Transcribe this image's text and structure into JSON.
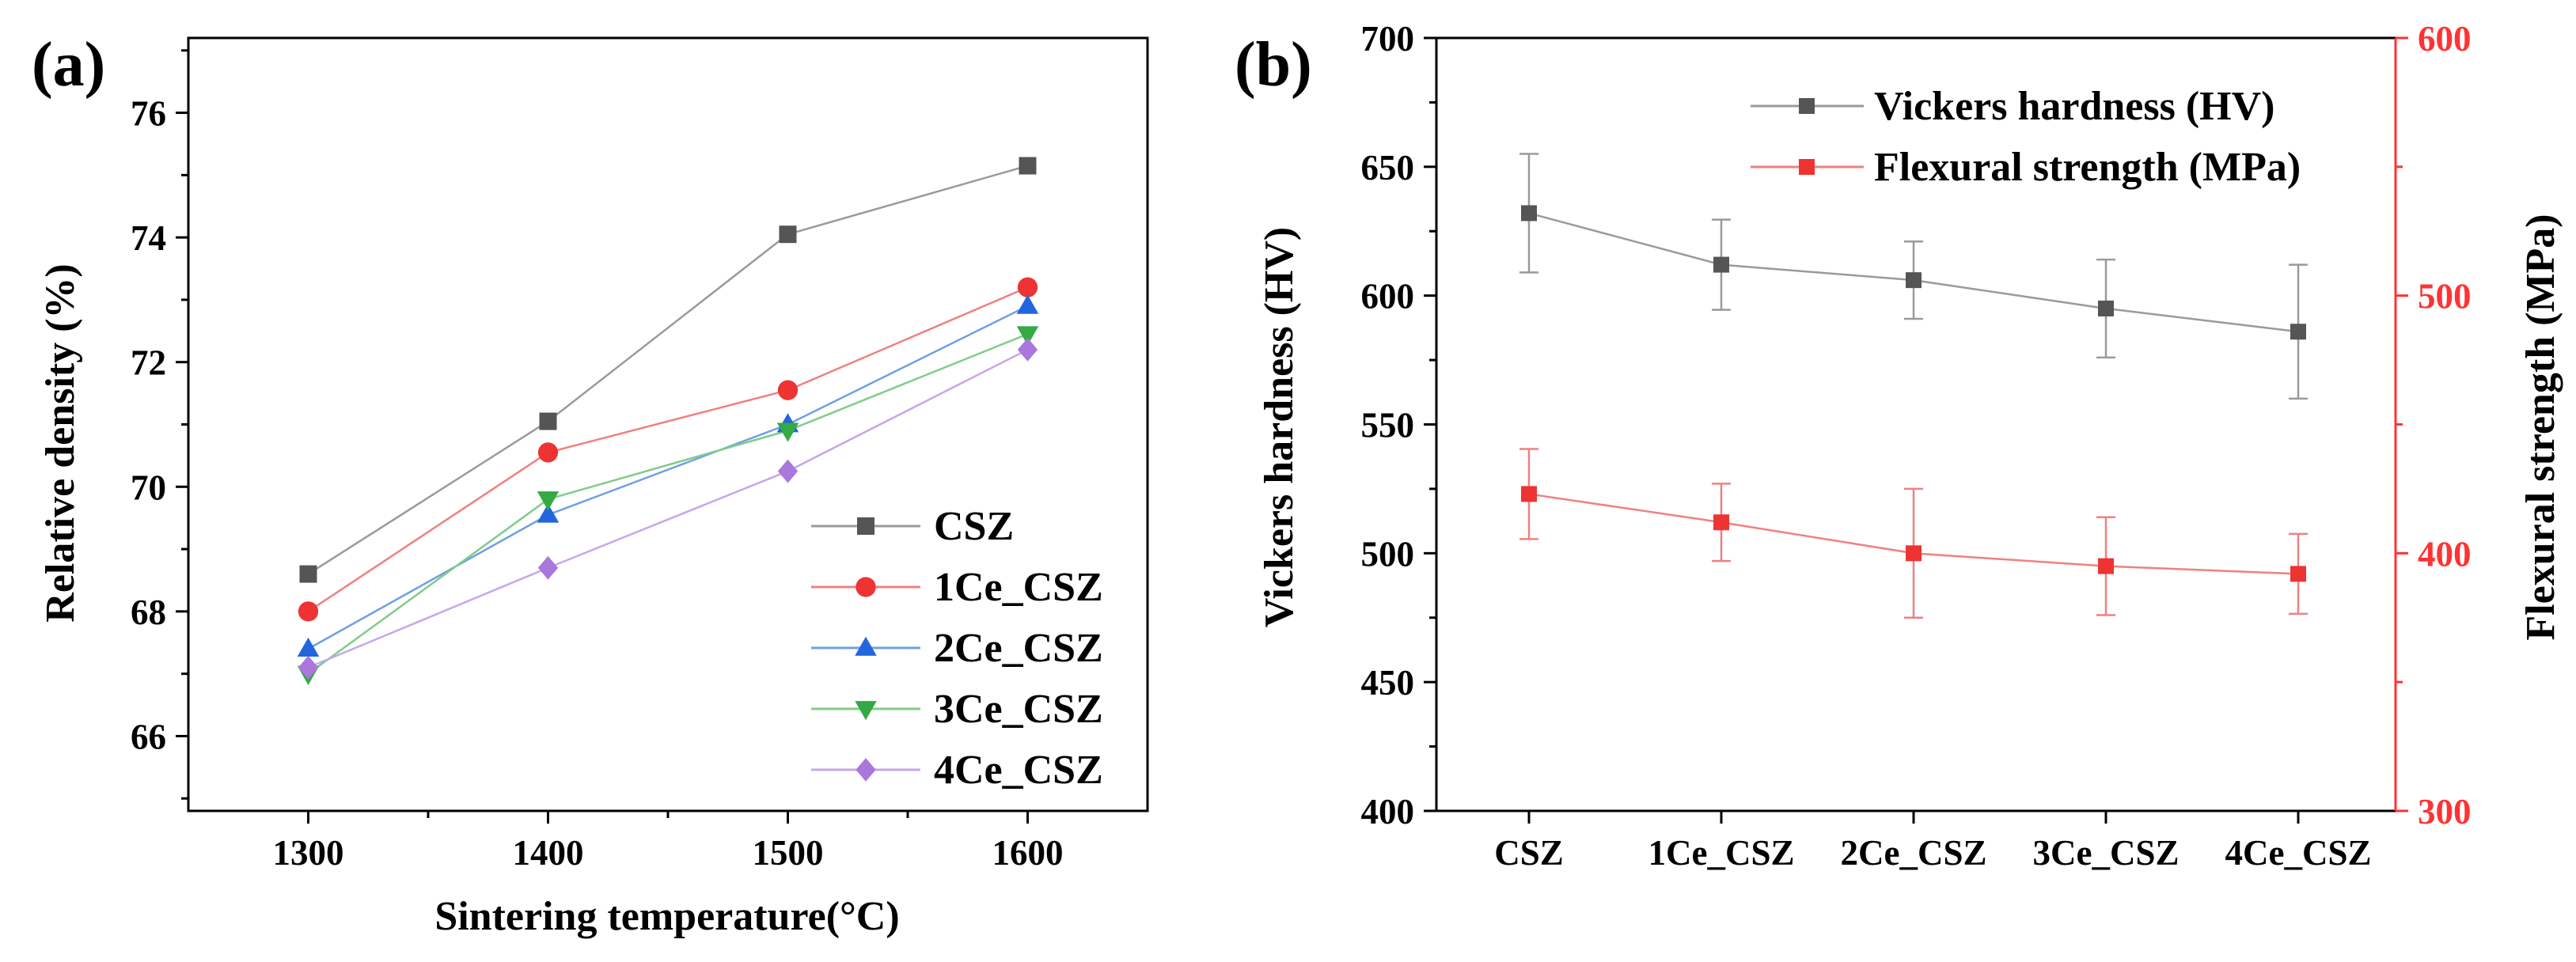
{
  "chart_data": [
    {
      "panel_label": "(a)",
      "type": "line",
      "title": "",
      "xlabel": "Sintering temperature(°C)",
      "ylabel": "Relative density (%)",
      "x": [
        1300,
        1400,
        1500,
        1600
      ],
      "xlim": [
        1250,
        1650
      ],
      "ylim": [
        64.8,
        77.2
      ],
      "xticks": [
        "1300",
        "1400",
        "1500",
        "1600"
      ],
      "yticks": [
        "66",
        "68",
        "70",
        "72",
        "74",
        "76"
      ],
      "grid": false,
      "legend_position": "bottom-right",
      "series": [
        {
          "name": "CSZ",
          "marker": "square",
          "color": "#555555",
          "line_color": "#9a9a9a",
          "values": [
            68.6,
            71.05,
            74.05,
            75.15
          ]
        },
        {
          "name": "1Ce_CSZ",
          "marker": "circle",
          "color": "#ee3333",
          "line_color": "#f08080",
          "values": [
            68.0,
            70.55,
            71.55,
            73.2
          ]
        },
        {
          "name": "2Ce_CSZ",
          "marker": "triangle-up",
          "color": "#2266dd",
          "line_color": "#6f9fe6",
          "values": [
            67.4,
            69.55,
            71.0,
            72.9
          ]
        },
        {
          "name": "3Ce_CSZ",
          "marker": "triangle-down",
          "color": "#33aa44",
          "line_color": "#80cc8a",
          "values": [
            67.0,
            69.8,
            70.9,
            72.45
          ]
        },
        {
          "name": "4Ce_CSZ",
          "marker": "diamond",
          "color": "#aa77dd",
          "line_color": "#c7a6ea",
          "values": [
            67.1,
            68.7,
            70.25,
            72.2
          ]
        }
      ]
    },
    {
      "panel_label": "(b)",
      "type": "line",
      "title": "",
      "xlabel": "",
      "categories": [
        "CSZ",
        "1Ce_CSZ",
        "2Ce_CSZ",
        "3Ce_CSZ",
        "4Ce_CSZ"
      ],
      "ylabel_left": "Vickers hardness (HV)",
      "ylabel_right": "Flexural strength (MPa)",
      "ylim_left": [
        400,
        700
      ],
      "ylim_right": [
        300,
        600
      ],
      "yticks_left": [
        "400",
        "450",
        "500",
        "550",
        "600",
        "650",
        "700"
      ],
      "yticks_right": [
        "300",
        "400",
        "500",
        "600"
      ],
      "grid": false,
      "legend_position": "top-right",
      "series": [
        {
          "name": "Vickers hardness (HV)",
          "axis": "left",
          "marker": "square",
          "color": "#555555",
          "line_color": "#9a9a9a",
          "values": [
            632,
            612,
            606,
            595,
            586
          ],
          "errors": [
            23,
            17.5,
            15,
            19,
            26
          ]
        },
        {
          "name": "Flexural strength (MPa)",
          "axis": "right",
          "marker": "square",
          "color": "#ee3333",
          "line_color": "#f08080",
          "values": [
            423,
            412,
            400,
            395,
            392
          ],
          "errors": [
            17.5,
            15,
            25,
            19,
            15.5
          ]
        }
      ]
    }
  ]
}
